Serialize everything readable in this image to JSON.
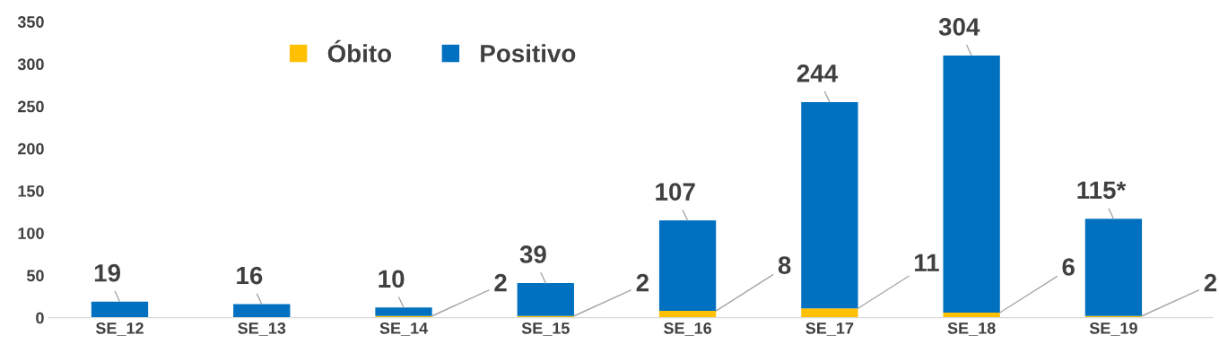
{
  "chart_data": {
    "type": "bar",
    "stacked": true,
    "categories": [
      "SE_12",
      "SE_13",
      "SE_14",
      "SE_15",
      "SE_16",
      "SE_17",
      "SE_18",
      "SE_19"
    ],
    "series": [
      {
        "name": "Óbito",
        "color": "#ffc000",
        "values": [
          0,
          0,
          2,
          2,
          8,
          11,
          6,
          2
        ],
        "value_labels": [
          null,
          null,
          "2",
          "2",
          "8",
          "11",
          "6",
          "2"
        ]
      },
      {
        "name": "Positivo",
        "color": "#0070c0",
        "values": [
          19,
          16,
          10,
          39,
          107,
          244,
          304,
          115
        ],
        "value_labels": [
          "19",
          "16",
          "10",
          "39",
          "107",
          "244",
          "304",
          "115*"
        ]
      }
    ],
    "ylim": [
      0,
      350
    ],
    "yticks": [
      0,
      50,
      100,
      150,
      200,
      250,
      300,
      350
    ],
    "grid": false,
    "legend": "top"
  }
}
